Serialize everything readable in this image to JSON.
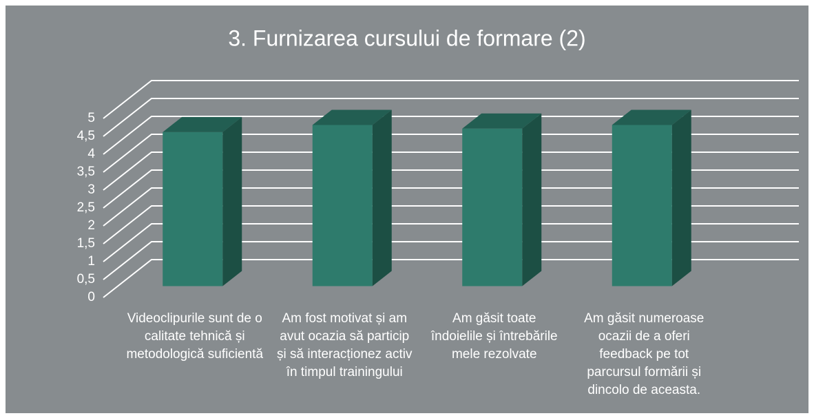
{
  "chart_data": {
    "type": "bar3d",
    "title": "3. Furnizarea cursului de formare (2)",
    "categories": [
      "Videoclipurile sunt de o calitate tehnică și metodologică suficientă",
      "Am fost motivat și am avut ocazia să particip și să interacționez activ în timpul trainingului",
      "Am găsit toate îndoielile și întrebările mele rezolvate",
      "Am găsit numeroase ocazii de a oferi feedback pe tot parcursul formării și dincolo de aceasta."
    ],
    "values": [
      4.3,
      4.5,
      4.4,
      4.5
    ],
    "color": "#2e7b6c",
    "ylim": [
      0,
      5
    ],
    "yticks": [
      0,
      {
        "value": 0.5,
        "label": "0,5"
      },
      1,
      {
        "value": 1.5,
        "label": "1,5"
      },
      2,
      {
        "value": 2.5,
        "label": "2,5"
      },
      3,
      {
        "value": 3.5,
        "label": "3,5"
      },
      4,
      {
        "value": 4.5,
        "label": "4,5"
      },
      5
    ],
    "grid": true
  }
}
